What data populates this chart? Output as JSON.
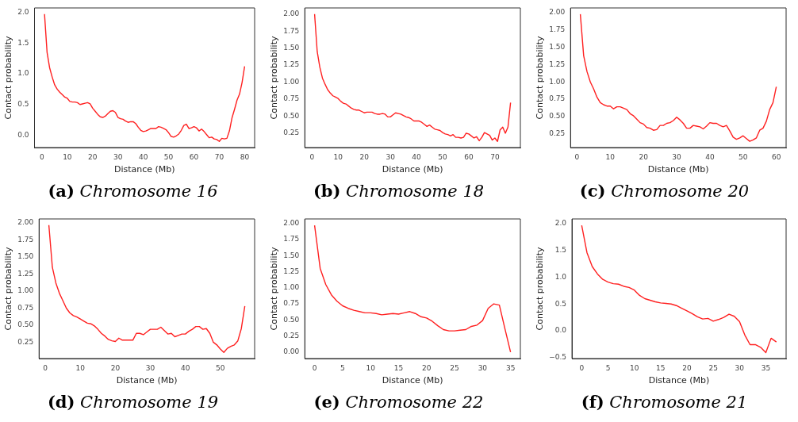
{
  "chart_data": [
    {
      "type": "line",
      "title": "(a) Chromosome 16",
      "xlabel": "Distance (Mb)",
      "ylabel": "Contact probability",
      "xlim": [
        -2.95,
        83.95
      ],
      "ylim": [
        -0.2,
        2.07
      ],
      "xticks": [
        0,
        10,
        20,
        30,
        40,
        50,
        60,
        70,
        80
      ],
      "yticks": [
        {
          "value": 0,
          "label": "0.0"
        },
        {
          "value": 0.5,
          "label": "0.5"
        },
        {
          "value": 1,
          "label": "1.0"
        },
        {
          "value": 1.5,
          "label": "1.5"
        },
        {
          "value": 2,
          "label": "2.0"
        }
      ],
      "x": [
        1,
        2,
        3,
        4,
        5,
        6,
        7,
        8,
        9,
        10,
        11,
        12,
        13,
        14,
        15,
        16,
        17,
        18,
        19,
        20,
        21,
        22,
        23,
        24,
        25,
        26,
        27,
        28,
        29,
        30,
        31,
        32,
        33,
        34,
        35,
        36,
        37,
        38,
        39,
        40,
        41,
        42,
        43,
        44,
        45,
        46,
        47,
        48,
        49,
        50,
        51,
        52,
        53,
        54,
        55,
        56,
        57,
        58,
        59,
        60,
        61,
        62,
        63,
        64,
        65,
        66,
        67,
        68,
        69,
        70,
        71,
        72,
        73,
        74,
        75,
        76,
        77,
        78,
        79,
        80
      ],
      "series": [
        {
          "color": "#ff2020",
          "values": [
            1.97,
            1.35,
            1.1,
            0.95,
            0.82,
            0.75,
            0.7,
            0.66,
            0.62,
            0.6,
            0.55,
            0.54,
            0.54,
            0.53,
            0.5,
            0.51,
            0.52,
            0.53,
            0.51,
            0.44,
            0.39,
            0.34,
            0.3,
            0.29,
            0.31,
            0.35,
            0.39,
            0.4,
            0.37,
            0.29,
            0.27,
            0.26,
            0.23,
            0.21,
            0.22,
            0.22,
            0.19,
            0.13,
            0.08,
            0.06,
            0.07,
            0.09,
            0.11,
            0.11,
            0.11,
            0.14,
            0.13,
            0.11,
            0.09,
            0.04,
            -0.02,
            -0.03,
            -0.01,
            0.02,
            0.08,
            0.16,
            0.18,
            0.11,
            0.12,
            0.14,
            0.12,
            0.07,
            0.1,
            0.06,
            0.01,
            -0.04,
            -0.03,
            -0.06,
            -0.07,
            -0.1,
            -0.05,
            -0.06,
            -0.05,
            0.07,
            0.28,
            0.42,
            0.57,
            0.67,
            0.86,
            1.12
          ]
        }
      ]
    },
    {
      "type": "line",
      "title": "(b) Chromosome 18",
      "xlabel": "Distance (Mb)",
      "ylabel": "Contact probability",
      "xlim": [
        -2.75,
        79.75
      ],
      "ylim": [
        0.04,
        2.09
      ],
      "xticks": [
        0,
        10,
        20,
        30,
        40,
        50,
        60,
        70
      ],
      "yticks": [
        {
          "value": 0.25,
          "label": "0.25"
        },
        {
          "value": 0.5,
          "label": "0.50"
        },
        {
          "value": 0.75,
          "label": "0.75"
        },
        {
          "value": 1,
          "label": "1.00"
        },
        {
          "value": 1.25,
          "label": "1.25"
        },
        {
          "value": 1.5,
          "label": "1.50"
        },
        {
          "value": 1.75,
          "label": "1.75"
        },
        {
          "value": 2,
          "label": "2.00"
        }
      ],
      "x": [
        1,
        2,
        3,
        4,
        5,
        6,
        7,
        8,
        9,
        10,
        11,
        12,
        13,
        14,
        15,
        16,
        17,
        18,
        19,
        20,
        21,
        22,
        23,
        24,
        25,
        26,
        27,
        28,
        29,
        30,
        31,
        32,
        33,
        34,
        35,
        36,
        37,
        38,
        39,
        40,
        41,
        42,
        43,
        44,
        45,
        46,
        47,
        48,
        49,
        50,
        51,
        52,
        53,
        54,
        55,
        56,
        57,
        58,
        59,
        60,
        61,
        62,
        63,
        64,
        65,
        66,
        67,
        68,
        69,
        70,
        71,
        72,
        73,
        74,
        75,
        76
      ],
      "series": [
        {
          "color": "#ff2020",
          "values": [
            2.0,
            1.45,
            1.22,
            1.06,
            0.97,
            0.89,
            0.84,
            0.8,
            0.78,
            0.76,
            0.72,
            0.69,
            0.68,
            0.65,
            0.62,
            0.6,
            0.59,
            0.59,
            0.57,
            0.55,
            0.56,
            0.56,
            0.56,
            0.54,
            0.53,
            0.53,
            0.54,
            0.53,
            0.49,
            0.49,
            0.52,
            0.55,
            0.54,
            0.53,
            0.51,
            0.49,
            0.48,
            0.46,
            0.43,
            0.43,
            0.43,
            0.41,
            0.38,
            0.35,
            0.37,
            0.34,
            0.31,
            0.3,
            0.29,
            0.26,
            0.24,
            0.23,
            0.21,
            0.23,
            0.19,
            0.19,
            0.18,
            0.19,
            0.25,
            0.24,
            0.21,
            0.18,
            0.2,
            0.14,
            0.19,
            0.26,
            0.24,
            0.22,
            0.15,
            0.18,
            0.13,
            0.3,
            0.34,
            0.25,
            0.34,
            0.7
          ]
        }
      ]
    },
    {
      "type": "line",
      "title": "(c) Chromosome 20",
      "xlabel": "Distance (Mb)",
      "ylabel": "Contact probability",
      "xlim": [
        -1.95,
        62.95
      ],
      "ylim": [
        0.05,
        2.07
      ],
      "xticks": [
        0,
        10,
        20,
        30,
        40,
        50,
        60
      ],
      "yticks": [
        {
          "value": 0.25,
          "label": "0.25"
        },
        {
          "value": 0.5,
          "label": "0.50"
        },
        {
          "value": 0.75,
          "label": "0.75"
        },
        {
          "value": 1,
          "label": "1.00"
        },
        {
          "value": 1.25,
          "label": "1.25"
        },
        {
          "value": 1.5,
          "label": "1.50"
        },
        {
          "value": 1.75,
          "label": "1.75"
        },
        {
          "value": 2,
          "label": "2.00"
        }
      ],
      "x": [
        1,
        2,
        3,
        4,
        5,
        6,
        7,
        8,
        9,
        10,
        11,
        12,
        13,
        14,
        15,
        16,
        17,
        18,
        19,
        20,
        21,
        22,
        23,
        24,
        25,
        26,
        27,
        28,
        29,
        30,
        31,
        32,
        33,
        34,
        35,
        36,
        37,
        38,
        39,
        40,
        41,
        42,
        43,
        44,
        45,
        46,
        47,
        48,
        49,
        50,
        51,
        52,
        53,
        54,
        55,
        56,
        57,
        58,
        59,
        60
      ],
      "series": [
        {
          "color": "#ff2020",
          "values": [
            1.98,
            1.38,
            1.15,
            1.0,
            0.9,
            0.78,
            0.7,
            0.67,
            0.65,
            0.65,
            0.61,
            0.64,
            0.64,
            0.62,
            0.6,
            0.54,
            0.51,
            0.46,
            0.41,
            0.39,
            0.34,
            0.33,
            0.3,
            0.31,
            0.37,
            0.37,
            0.4,
            0.41,
            0.44,
            0.49,
            0.45,
            0.4,
            0.33,
            0.33,
            0.37,
            0.36,
            0.35,
            0.32,
            0.36,
            0.41,
            0.4,
            0.4,
            0.37,
            0.35,
            0.37,
            0.29,
            0.2,
            0.17,
            0.19,
            0.22,
            0.18,
            0.14,
            0.16,
            0.19,
            0.3,
            0.33,
            0.43,
            0.6,
            0.7,
            0.93
          ]
        }
      ]
    },
    {
      "type": "line",
      "title": "(d) Chromosome 19",
      "xlabel": "Distance (Mb)",
      "ylabel": "Contact probability",
      "xlim": [
        -1.8,
        59.8
      ],
      "ylim": [
        0.01,
        2.06
      ],
      "xticks": [
        0,
        10,
        20,
        30,
        40,
        50
      ],
      "yticks": [
        {
          "value": 0.25,
          "label": "0.25"
        },
        {
          "value": 0.5,
          "label": "0.50"
        },
        {
          "value": 0.75,
          "label": "0.75"
        },
        {
          "value": 1,
          "label": "1.00"
        },
        {
          "value": 1.25,
          "label": "1.25"
        },
        {
          "value": 1.5,
          "label": "1.50"
        },
        {
          "value": 1.75,
          "label": "1.75"
        },
        {
          "value": 2,
          "label": "2.00"
        }
      ],
      "x": [
        1,
        2,
        3,
        4,
        5,
        6,
        7,
        8,
        9,
        10,
        11,
        12,
        13,
        14,
        15,
        16,
        17,
        18,
        19,
        20,
        21,
        22,
        23,
        24,
        25,
        26,
        27,
        28,
        29,
        30,
        31,
        32,
        33,
        34,
        35,
        36,
        37,
        38,
        39,
        40,
        41,
        42,
        43,
        44,
        45,
        46,
        47,
        48,
        49,
        50,
        51,
        52,
        53,
        54,
        55,
        56,
        57
      ],
      "series": [
        {
          "color": "#ff2020",
          "values": [
            1.97,
            1.35,
            1.12,
            0.97,
            0.86,
            0.75,
            0.68,
            0.64,
            0.62,
            0.59,
            0.56,
            0.53,
            0.52,
            0.49,
            0.44,
            0.38,
            0.34,
            0.29,
            0.27,
            0.26,
            0.31,
            0.28,
            0.28,
            0.28,
            0.28,
            0.38,
            0.38,
            0.36,
            0.4,
            0.44,
            0.44,
            0.44,
            0.47,
            0.42,
            0.37,
            0.38,
            0.33,
            0.35,
            0.37,
            0.37,
            0.41,
            0.44,
            0.48,
            0.48,
            0.44,
            0.45,
            0.38,
            0.25,
            0.21,
            0.15,
            0.1,
            0.16,
            0.19,
            0.21,
            0.27,
            0.45,
            0.78
          ]
        }
      ]
    },
    {
      "type": "line",
      "title": "(e) Chromosome 22",
      "xlabel": "Distance (Mb)",
      "ylabel": "Contact probability",
      "xlim": [
        -1.75,
        36.75
      ],
      "ylim": [
        -0.1,
        2.07
      ],
      "xticks": [
        0,
        5,
        10,
        15,
        20,
        25,
        30,
        35
      ],
      "yticks": [
        {
          "value": 0,
          "label": "0.00"
        },
        {
          "value": 0.25,
          "label": "0.25"
        },
        {
          "value": 0.5,
          "label": "0.50"
        },
        {
          "value": 0.75,
          "label": "0.75"
        },
        {
          "value": 1,
          "label": "1.00"
        },
        {
          "value": 1.25,
          "label": "1.25"
        },
        {
          "value": 1.5,
          "label": "1.50"
        },
        {
          "value": 1.75,
          "label": "1.75"
        },
        {
          "value": 2,
          "label": "2.00"
        }
      ],
      "x": [
        0,
        1,
        2,
        3,
        4,
        5,
        6,
        7,
        8,
        9,
        10,
        11,
        12,
        13,
        14,
        15,
        16,
        17,
        18,
        19,
        20,
        21,
        22,
        23,
        24,
        25,
        26,
        27,
        28,
        29,
        30,
        31,
        32,
        33,
        34,
        35
      ],
      "series": [
        {
          "color": "#ff2020",
          "values": [
            1.97,
            1.3,
            1.05,
            0.89,
            0.79,
            0.72,
            0.68,
            0.65,
            0.63,
            0.61,
            0.61,
            0.6,
            0.58,
            0.59,
            0.6,
            0.59,
            0.61,
            0.63,
            0.6,
            0.55,
            0.53,
            0.48,
            0.41,
            0.35,
            0.33,
            0.33,
            0.34,
            0.35,
            0.4,
            0.42,
            0.49,
            0.68,
            0.75,
            0.73,
            0.36,
            0.0
          ]
        }
      ]
    },
    {
      "type": "line",
      "title": "(f) Chromosome 21",
      "xlabel": "Distance (Mb)",
      "ylabel": "Contact probability",
      "xlim": [
        -1.85,
        38.85
      ],
      "ylim": [
        -0.52,
        2.09
      ],
      "xticks": [
        0,
        5,
        10,
        15,
        20,
        25,
        30,
        35
      ],
      "yticks": [
        {
          "value": -0.5,
          "label": "−0.5"
        },
        {
          "value": 0,
          "label": "0.0"
        },
        {
          "value": 0.5,
          "label": "0.5"
        },
        {
          "value": 1,
          "label": "1.0"
        },
        {
          "value": 1.5,
          "label": "1.5"
        },
        {
          "value": 2,
          "label": "2.0"
        }
      ],
      "x": [
        0,
        1,
        2,
        3,
        4,
        5,
        6,
        7,
        8,
        9,
        10,
        11,
        12,
        13,
        14,
        15,
        16,
        17,
        18,
        19,
        20,
        21,
        22,
        23,
        24,
        25,
        26,
        27,
        28,
        29,
        30,
        31,
        32,
        33,
        34,
        35,
        36,
        37
      ],
      "series": [
        {
          "color": "#ff2020",
          "values": [
            1.97,
            1.46,
            1.2,
            1.06,
            0.96,
            0.91,
            0.88,
            0.87,
            0.83,
            0.81,
            0.76,
            0.66,
            0.6,
            0.57,
            0.54,
            0.52,
            0.51,
            0.5,
            0.47,
            0.42,
            0.37,
            0.32,
            0.26,
            0.22,
            0.23,
            0.18,
            0.21,
            0.25,
            0.31,
            0.27,
            0.17,
            -0.08,
            -0.26,
            -0.26,
            -0.31,
            -0.41,
            -0.14,
            -0.21
          ]
        }
      ]
    }
  ]
}
